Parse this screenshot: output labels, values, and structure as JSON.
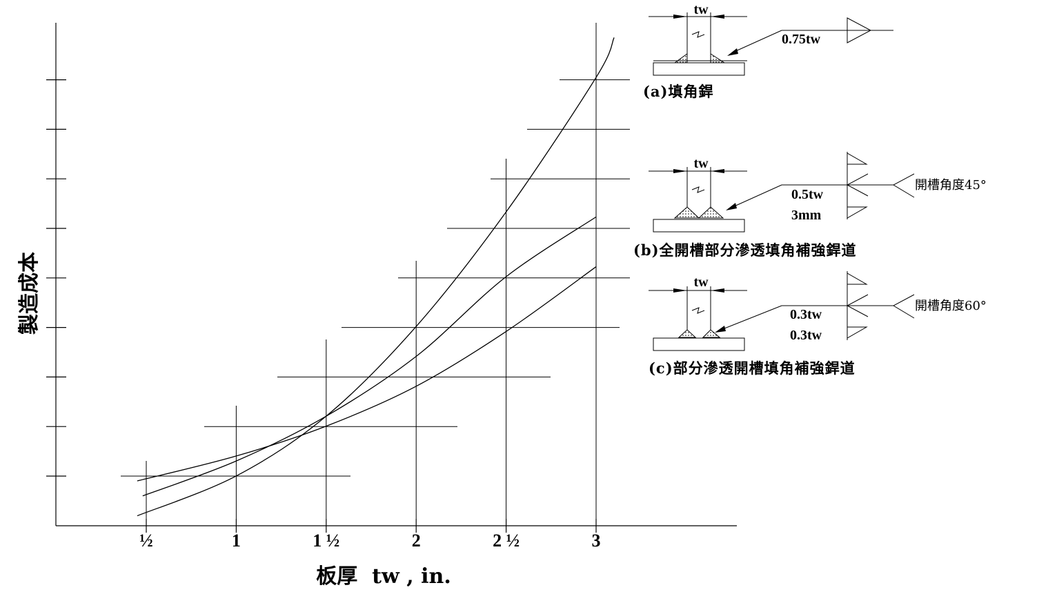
{
  "chart_data": {
    "type": "line",
    "xlabel": "板厚  tw , in.",
    "ylabel": "製造成本",
    "x_ticks": [
      "½",
      "1",
      "1 ½",
      "2",
      "2 ½",
      "3"
    ],
    "x_values": [
      0.5,
      1,
      1.5,
      2,
      2.5,
      3
    ],
    "xlim": [
      0,
      3.8
    ],
    "ylim": [
      0,
      10
    ],
    "y_ticks_count": 9,
    "grid": "cross-marks",
    "series": [
      {
        "x": [
          0.5,
          1,
          1.5,
          2,
          2.5,
          3,
          3.1
        ],
        "y": [
          0.2,
          1.0,
          2.2,
          4.0,
          6.3,
          9.0,
          9.8
        ]
      },
      {
        "x": [
          0.5,
          1,
          1.5,
          2,
          2.5,
          3
        ],
        "y": [
          0.6,
          1.3,
          2.2,
          3.4,
          5.0,
          6.2
        ]
      },
      {
        "x": [
          0.5,
          1,
          1.5,
          2,
          2.5,
          3
        ],
        "y": [
          0.9,
          1.4,
          2.0,
          2.8,
          3.9,
          5.2
        ]
      }
    ]
  },
  "weld_details": {
    "a": {
      "tw": "tw",
      "size_label": "0.75tw",
      "caption": "(a)填角銲"
    },
    "b": {
      "tw": "tw",
      "size_label": "0.5tw",
      "root_label": "3mm",
      "angle_label": "開槽角度45°",
      "caption": "(b)全開槽部分滲透填角補強銲道"
    },
    "c": {
      "tw": "tw",
      "size_label_top": "0.3tw",
      "size_label_bottom": "0.3tw",
      "angle_label": "開槽角度60°",
      "caption": "(c)部分滲透開槽填角補強銲道"
    }
  }
}
